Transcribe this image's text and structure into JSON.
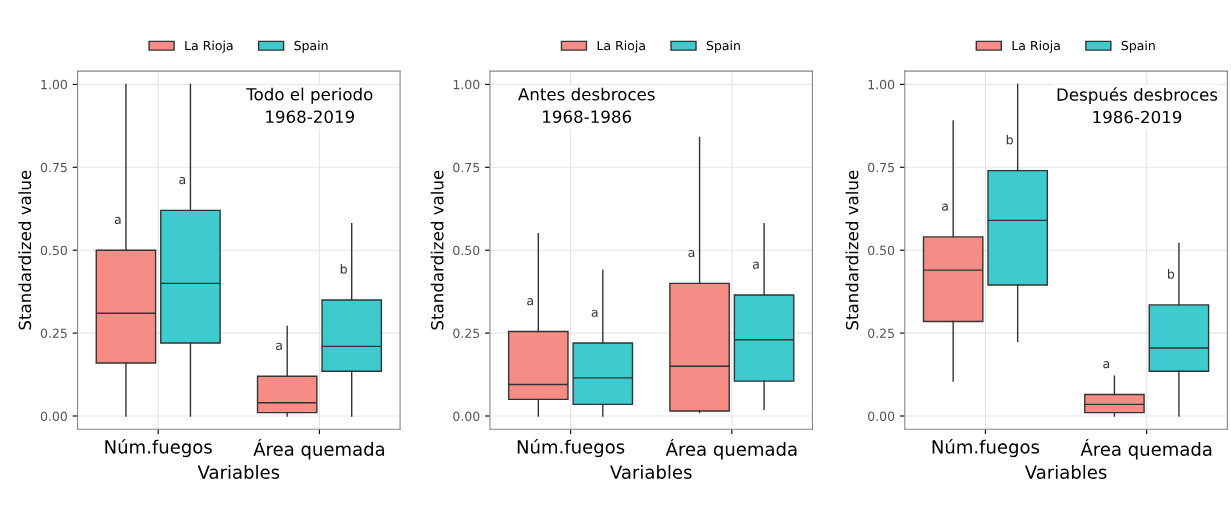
{
  "chart_data": [
    {
      "type": "box",
      "categories": [
        "Núm.fuegos",
        "Área quemada"
      ],
      "xlabel": "Variables",
      "ylabel": "Standardized value",
      "ylim": [
        -0.04,
        1.04
      ],
      "yticks": [
        {
          "value": 0,
          "label": "0.00"
        },
        {
          "value": 0.25,
          "label": "0.25"
        },
        {
          "value": 0.5,
          "label": "0.50"
        },
        {
          "value": 0.75,
          "label": "0.75"
        },
        {
          "value": 1,
          "label": "1.00"
        }
      ],
      "grid": true,
      "legend": "top",
      "series": [
        {
          "name": "La Rioja",
          "color": "#f58d86",
          "boxes": [
            {
              "low": 0,
              "q1": 0.16,
              "median": 0.31,
              "q3": 0.5,
              "high": 1.0
            },
            {
              "low": 0,
              "q1": 0.01,
              "median": 0.04,
              "q3": 0.12,
              "high": 0.27
            }
          ]
        },
        {
          "name": "Spain",
          "color": "#3ecbcf",
          "boxes": [
            {
              "low": 0,
              "q1": 0.22,
              "median": 0.4,
              "q3": 0.62,
              "high": 1.0
            },
            {
              "low": 0,
              "q1": 0.135,
              "median": 0.21,
              "q3": 0.35,
              "high": 0.58
            }
          ]
        }
      ],
      "annotations": [
        "Todo el periodo\n1968-2019",
        "a",
        "a",
        "a",
        "b"
      ]
    },
    {
      "type": "box",
      "categories": [
        "Núm.fuegos",
        "Área quemada"
      ],
      "xlabel": "Variables",
      "ylabel": "Standardized value",
      "ylim": [
        -0.04,
        1.04
      ],
      "yticks": [
        {
          "value": 0,
          "label": "0.00"
        },
        {
          "value": 0.25,
          "label": "0.25"
        },
        {
          "value": 0.5,
          "label": "0.50"
        },
        {
          "value": 0.75,
          "label": "0.75"
        },
        {
          "value": 1,
          "label": "1.00"
        }
      ],
      "grid": true,
      "legend": "top",
      "series": [
        {
          "name": "La Rioja",
          "color": "#f58d86",
          "boxes": [
            {
              "low": 0,
              "q1": 0.05,
              "median": 0.095,
              "q3": 0.255,
              "high": 0.55
            },
            {
              "low": 0.01,
              "q1": 0.015,
              "median": 0.15,
              "q3": 0.4,
              "high": 0.84
            }
          ]
        },
        {
          "name": "Spain",
          "color": "#3ecbcf",
          "boxes": [
            {
              "low": 0,
              "q1": 0.035,
              "median": 0.115,
              "q3": 0.22,
              "high": 0.44
            },
            {
              "low": 0.02,
              "q1": 0.105,
              "median": 0.23,
              "q3": 0.365,
              "high": 0.58
            }
          ]
        }
      ],
      "annotations": [
        "Antes desbroces\n1968-1986",
        "a",
        "a",
        "a",
        "a"
      ]
    },
    {
      "type": "box",
      "categories": [
        "Núm.fuegos",
        "Área quemada"
      ],
      "xlabel": "Variables",
      "ylabel": "Standardized value",
      "ylim": [
        -0.04,
        1.04
      ],
      "yticks": [
        {
          "value": 0,
          "label": "0.00"
        },
        {
          "value": 0.25,
          "label": "0.25"
        },
        {
          "value": 0.5,
          "label": "0.50"
        },
        {
          "value": 0.75,
          "label": "0.75"
        },
        {
          "value": 1,
          "label": "1.00"
        }
      ],
      "grid": true,
      "legend": "top",
      "series": [
        {
          "name": "La Rioja",
          "color": "#f58d86",
          "boxes": [
            {
              "low": 0.105,
              "q1": 0.285,
              "median": 0.44,
              "q3": 0.54,
              "high": 0.89
            },
            {
              "low": 0,
              "q1": 0.01,
              "median": 0.035,
              "q3": 0.065,
              "high": 0.12
            }
          ]
        },
        {
          "name": "Spain",
          "color": "#3ecbcf",
          "boxes": [
            {
              "low": 0.225,
              "q1": 0.395,
              "median": 0.59,
              "q3": 0.74,
              "high": 1.0
            },
            {
              "low": 0,
              "q1": 0.135,
              "median": 0.205,
              "q3": 0.335,
              "high": 0.52
            }
          ]
        }
      ],
      "annotations": [
        "Después desbroces\n1986-2019",
        "a",
        "b",
        "a",
        "b"
      ]
    }
  ]
}
